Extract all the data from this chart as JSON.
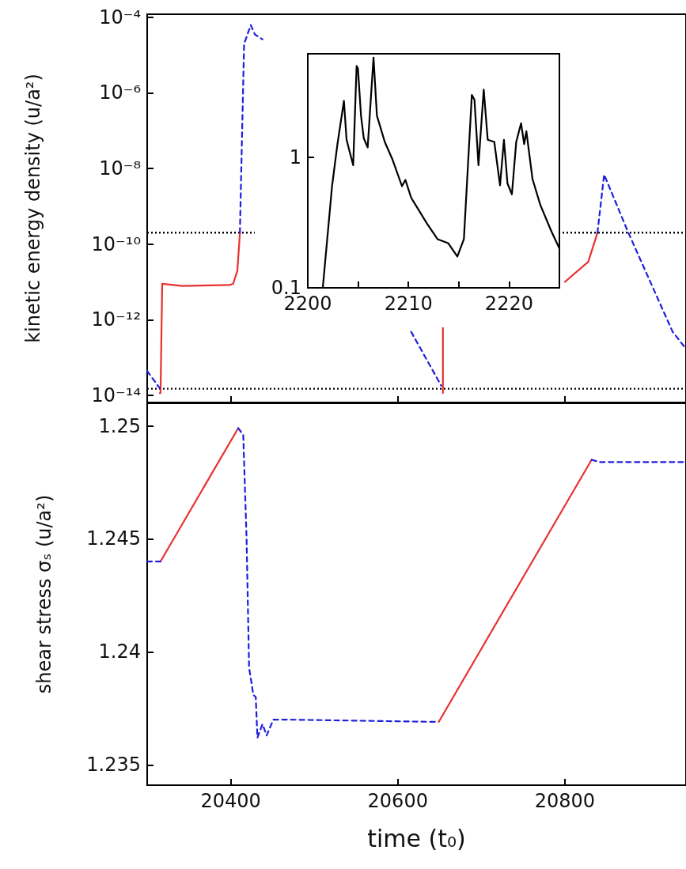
{
  "chart_data": [
    {
      "type": "line",
      "ylabel": "kinetic energy density (u/a²)",
      "log": "y",
      "tick_labels": "y",
      "xlim": [
        20300,
        20945
      ],
      "xticks": [
        20400,
        20600,
        20800
      ],
      "ylim": [
        6.5e-15,
        0.00012
      ],
      "yticks": [
        {
          "value": 1e-14,
          "label": "10⁻¹⁴"
        },
        {
          "value": 1e-12,
          "label": "10⁻¹²"
        },
        {
          "value": 1e-10,
          "label": "10⁻¹⁰"
        },
        {
          "value": 1e-08,
          "label": "10⁻⁸"
        },
        {
          "value": 1e-06,
          "label": "10⁻⁶"
        },
        {
          "value": 0.0001,
          "label": "10⁻⁴"
        }
      ],
      "ref_lines": [
        {
          "axis": "y",
          "value": 2e-10,
          "color": "#000000",
          "line_style": "dotted"
        },
        {
          "axis": "y",
          "value": 1.5e-14,
          "color": "#000000",
          "line_style": "dotted"
        }
      ],
      "marker": "none",
      "series": [
        {
          "color": "#e8312f",
          "line_style": "solid",
          "x": [
            20315,
            20316,
            20318,
            20342,
            20399,
            20403,
            20408,
            20411,
            20530,
            20654,
            20654,
            20700,
            20800,
            20828,
            20839
          ],
          "values": [
            1.15e-14,
            1.15e-14,
            8.9e-12,
            7.8e-12,
            8.3e-12,
            9e-12,
            2e-11,
            2e-10,
            null,
            1.15e-14,
            6.3e-13,
            null,
            1e-11,
            3.4e-11,
            2e-10
          ]
        },
        {
          "color": "#1f1fdd",
          "line_style": "dashed",
          "x": [
            20300,
            20315,
            20360,
            20411,
            20416,
            20424,
            20429,
            20438,
            20530,
            20616,
            20652,
            20700,
            20839,
            20847,
            20876,
            20929,
            20945
          ],
          "values": [
            4.4e-14,
            1.55e-14,
            null,
            2e-10,
            1.95e-05,
            6.2e-05,
            3.5e-05,
            2.6e-05,
            null,
            4.8e-13,
            1.8e-14,
            null,
            2e-10,
            6.9e-09,
            2e-10,
            4.8e-13,
            1.7e-13
          ]
        }
      ]
    },
    {
      "type": "line",
      "ylabel": "shear stress σₛ (u/a²)",
      "xlabel": "time (t₀)",
      "xlim": [
        20300,
        20945
      ],
      "xticks": [
        20400,
        20600,
        20800
      ],
      "ylim": [
        1.2341,
        1.251
      ],
      "yticks": [
        1.235,
        1.24,
        1.245,
        1.25
      ],
      "marker": "none",
      "series": [
        {
          "color": "#e8312f",
          "line_style": "solid",
          "x": [
            20316,
            20409,
            20550,
            20649,
            20832
          ],
          "values": [
            1.244,
            1.2499,
            null,
            1.2369,
            1.2485
          ]
        },
        {
          "color": "#1f1fdd",
          "line_style": "dashed",
          "x": [
            20300,
            20316,
            20380,
            20409,
            20415,
            20419,
            20422,
            20425,
            20427,
            20430,
            20432,
            20438,
            20443,
            20451,
            20470,
            20649,
            20700,
            20832,
            20841,
            20945
          ],
          "values": [
            1.244,
            1.244,
            null,
            1.2499,
            1.2496,
            1.245,
            1.2393,
            1.2386,
            1.2381,
            1.238,
            1.2362,
            1.2368,
            1.2363,
            1.237,
            1.237,
            1.2369,
            null,
            1.2485,
            1.2484,
            1.2484
          ]
        }
      ]
    },
    {
      "type": "line",
      "log": "y",
      "marker": "none",
      "xlim": [
        2200,
        2225
      ],
      "xticks": [
        2200,
        {
          "value": 2205,
          "label": null
        },
        2210,
        {
          "value": 2215,
          "label": null
        },
        2220,
        {
          "value": 2225,
          "label": null
        }
      ],
      "ylim": [
        0.1,
        6.2
      ],
      "yticks": [
        0.1,
        1
      ],
      "series": [
        {
          "color": "#000000",
          "line_style": "solid",
          "x": [
            2201.49,
            2202.41,
            2202.94,
            2203.59,
            2203.85,
            2204.11,
            2204.51,
            2204.85,
            2204.98,
            2205.29,
            2205.56,
            2205.95,
            2206.53,
            2206.87,
            2207.65,
            2208.44,
            2209.36,
            2209.7,
            2210.27,
            2211.85,
            2212.89,
            2213.94,
            2214.86,
            2215.51,
            2216.3,
            2216.56,
            2216.96,
            2217.48,
            2217.88,
            2218.53,
            2219.1,
            2219.49,
            2219.84,
            2220.28,
            2220.71,
            2221.19,
            2221.5,
            2221.72,
            2222.33,
            2223.11,
            2224.21,
            2225
          ],
          "values": [
            0.1,
            0.6,
            1.25,
            2.7,
            1.37,
            1.14,
            0.87,
            5.0,
            4.8,
            2.08,
            1.4,
            1.19,
            5.8,
            2.08,
            1.31,
            0.95,
            0.6,
            0.67,
            0.49,
            0.31,
            0.236,
            0.22,
            0.174,
            0.236,
            3.0,
            2.75,
            0.87,
            3.3,
            1.36,
            1.31,
            0.61,
            1.36,
            0.63,
            0.52,
            1.31,
            1.82,
            1.26,
            1.58,
            0.68,
            0.43,
            0.27,
            0.2
          ]
        }
      ]
    }
  ]
}
